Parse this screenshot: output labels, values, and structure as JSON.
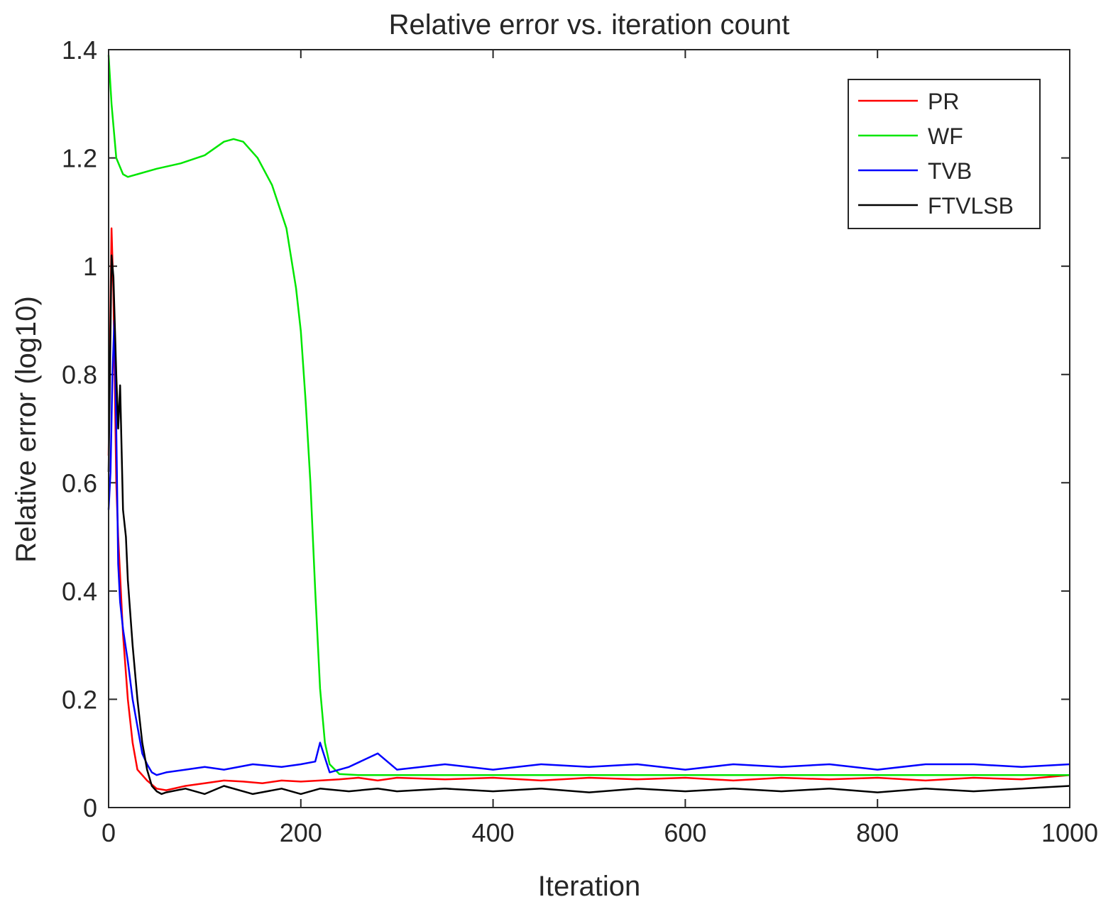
{
  "chart_data": {
    "type": "line",
    "title": "Relative error vs. iteration count",
    "xlabel": "Iteration",
    "ylabel": "Relative error (log10)",
    "xlim": [
      0,
      1000
    ],
    "ylim": [
      0,
      1.4
    ],
    "xticks": [
      0,
      200,
      400,
      600,
      800,
      1000
    ],
    "yticks": [
      0,
      0.2,
      0.4,
      0.6,
      0.8,
      1,
      1.2,
      1.4
    ],
    "xtick_labels": [
      "0",
      "200",
      "400",
      "600",
      "800",
      "1000"
    ],
    "ytick_labels": [
      "0",
      "0.2",
      "0.4",
      "0.6",
      "0.8",
      "1",
      "1.2",
      "1.4"
    ],
    "grid": false,
    "legend_position": "top-right",
    "series": [
      {
        "name": "PR",
        "color": "#ff0000",
        "x": [
          0,
          3,
          5,
          8,
          10,
          15,
          20,
          25,
          30,
          40,
          50,
          60,
          80,
          100,
          120,
          140,
          160,
          180,
          200,
          220,
          240,
          260,
          280,
          300,
          350,
          400,
          450,
          500,
          550,
          600,
          650,
          700,
          750,
          800,
          850,
          900,
          950,
          1000
        ],
        "y": [
          0.65,
          1.07,
          0.95,
          0.6,
          0.5,
          0.32,
          0.2,
          0.12,
          0.07,
          0.05,
          0.035,
          0.032,
          0.04,
          0.045,
          0.05,
          0.048,
          0.045,
          0.05,
          0.048,
          0.05,
          0.052,
          0.055,
          0.05,
          0.055,
          0.052,
          0.055,
          0.05,
          0.055,
          0.052,
          0.055,
          0.05,
          0.055,
          0.052,
          0.055,
          0.05,
          0.055,
          0.052,
          0.06
        ]
      },
      {
        "name": "WF",
        "color": "#00e600",
        "x": [
          0,
          3,
          8,
          15,
          20,
          30,
          50,
          75,
          100,
          120,
          130,
          140,
          155,
          170,
          185,
          195,
          200,
          205,
          210,
          215,
          220,
          225,
          230,
          240,
          260,
          300,
          400,
          500,
          600,
          700,
          800,
          900,
          1000
        ],
        "y": [
          1.39,
          1.3,
          1.2,
          1.17,
          1.165,
          1.17,
          1.18,
          1.19,
          1.205,
          1.23,
          1.235,
          1.23,
          1.2,
          1.15,
          1.07,
          0.96,
          0.88,
          0.75,
          0.6,
          0.4,
          0.22,
          0.12,
          0.08,
          0.062,
          0.06,
          0.06,
          0.06,
          0.06,
          0.06,
          0.06,
          0.06,
          0.06,
          0.06
        ]
      },
      {
        "name": "TVB",
        "color": "#0000ff",
        "x": [
          0,
          2,
          4,
          6,
          8,
          10,
          12,
          15,
          20,
          25,
          30,
          35,
          40,
          45,
          50,
          60,
          80,
          100,
          120,
          150,
          180,
          200,
          215,
          220,
          230,
          250,
          280,
          300,
          350,
          400,
          450,
          500,
          550,
          600,
          650,
          700,
          750,
          800,
          850,
          900,
          950,
          1000
        ],
        "y": [
          0.55,
          0.62,
          0.8,
          0.9,
          0.7,
          0.45,
          0.38,
          0.33,
          0.27,
          0.2,
          0.15,
          0.1,
          0.08,
          0.065,
          0.06,
          0.065,
          0.07,
          0.075,
          0.07,
          0.08,
          0.075,
          0.08,
          0.085,
          0.12,
          0.065,
          0.075,
          0.1,
          0.07,
          0.08,
          0.07,
          0.08,
          0.075,
          0.08,
          0.07,
          0.08,
          0.075,
          0.08,
          0.07,
          0.08,
          0.08,
          0.075,
          0.08
        ]
      },
      {
        "name": "FTVLSB",
        "color": "#000000",
        "x": [
          0,
          3,
          5,
          8,
          10,
          12,
          15,
          18,
          20,
          25,
          30,
          35,
          40,
          45,
          50,
          55,
          60,
          80,
          100,
          120,
          150,
          180,
          200,
          220,
          250,
          280,
          300,
          350,
          400,
          450,
          500,
          550,
          600,
          650,
          700,
          750,
          800,
          850,
          900,
          950,
          1000
        ],
        "y": [
          0.62,
          1.02,
          0.98,
          0.8,
          0.7,
          0.78,
          0.55,
          0.5,
          0.42,
          0.3,
          0.2,
          0.12,
          0.07,
          0.04,
          0.03,
          0.025,
          0.028,
          0.035,
          0.025,
          0.04,
          0.025,
          0.035,
          0.025,
          0.035,
          0.03,
          0.035,
          0.03,
          0.035,
          0.03,
          0.035,
          0.028,
          0.035,
          0.03,
          0.035,
          0.03,
          0.035,
          0.028,
          0.035,
          0.03,
          0.035,
          0.04
        ]
      }
    ]
  }
}
